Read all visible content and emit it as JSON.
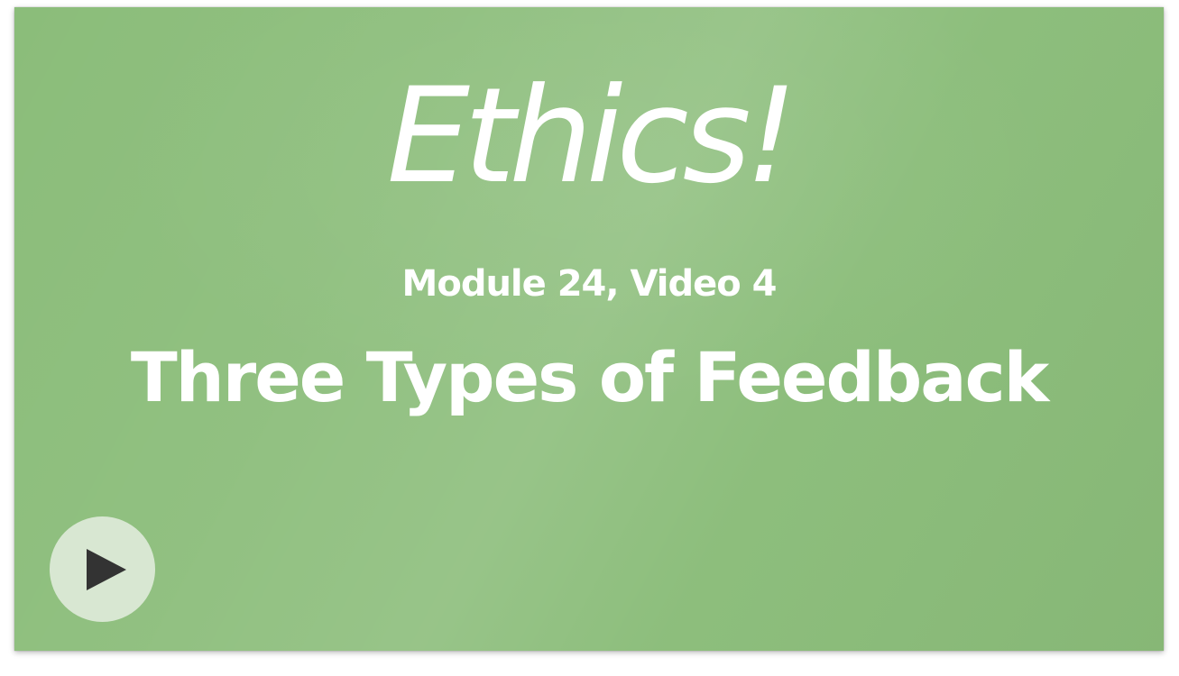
{
  "video": {
    "title": "Ethics!",
    "subtitle": "Module 24, Video 4",
    "heading": "Three Types of Feedback"
  },
  "controls": {
    "play_icon": "play-icon"
  },
  "colors": {
    "background": "#8bbd7a",
    "text": "#ffffff",
    "play_circle": "#d8e7d2",
    "play_glyph": "#333333"
  }
}
